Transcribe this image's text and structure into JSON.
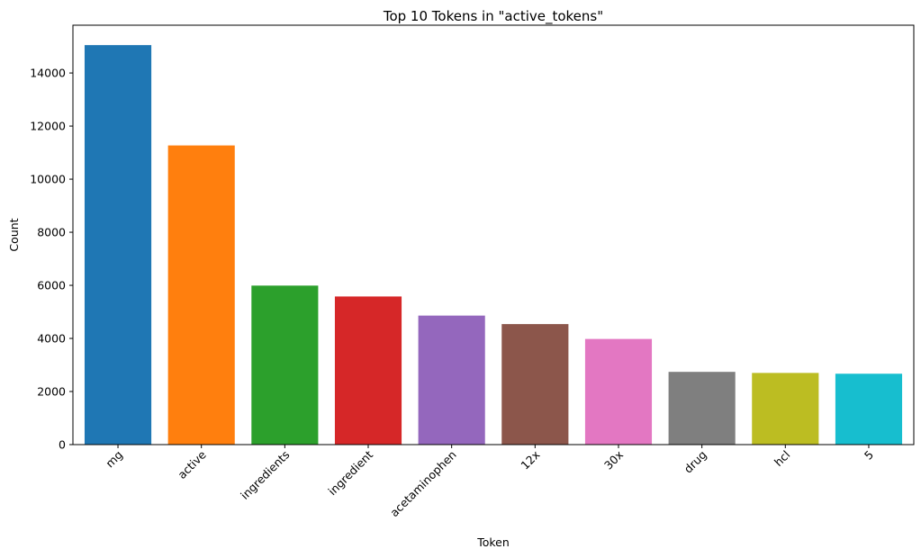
{
  "chart_data": {
    "type": "bar",
    "title": "Top 10 Tokens in \"active_tokens\"",
    "xlabel": "Token",
    "ylabel": "Count",
    "categories": [
      "mg",
      "active",
      "ingredients",
      "ingredient",
      "acetaminophen",
      "12x",
      "30x",
      "drug",
      "hcl",
      "5"
    ],
    "values": [
      15050,
      11270,
      5990,
      5580,
      4860,
      4540,
      3980,
      2740,
      2700,
      2670
    ],
    "colors": [
      "#1f77b4",
      "#ff7f0e",
      "#2ca02c",
      "#d62728",
      "#9467bd",
      "#8c564b",
      "#e377c2",
      "#7f7f7f",
      "#bcbd22",
      "#17becf"
    ],
    "ylim": [
      0,
      15800
    ],
    "yticks": [
      0,
      2000,
      4000,
      6000,
      8000,
      10000,
      12000,
      14000
    ],
    "grid": false,
    "legend": "none",
    "xtick_rotation_deg": 45
  }
}
